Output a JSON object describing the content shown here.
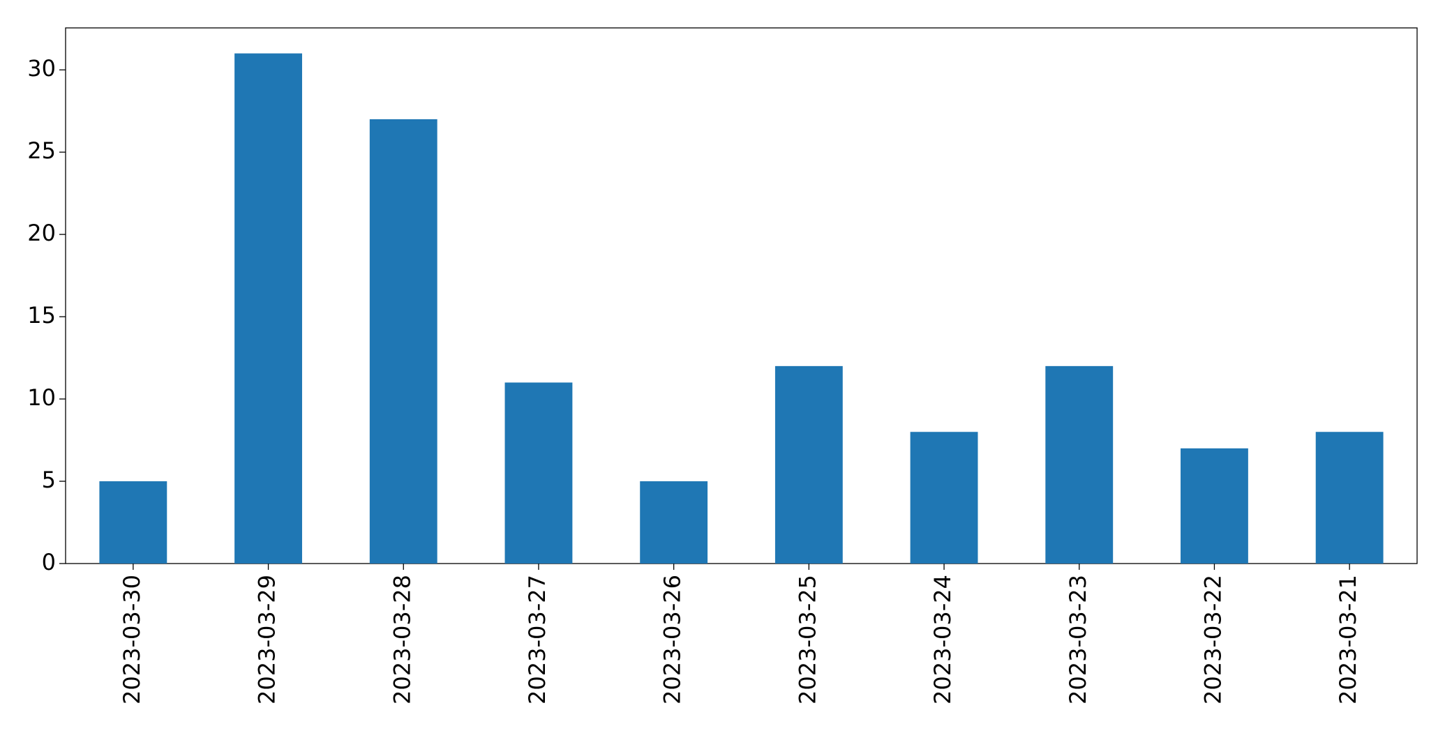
{
  "chart_data": {
    "type": "bar",
    "categories": [
      "2023-03-30",
      "2023-03-29",
      "2023-03-28",
      "2023-03-27",
      "2023-03-26",
      "2023-03-25",
      "2023-03-24",
      "2023-03-23",
      "2023-03-22",
      "2023-03-21"
    ],
    "values": [
      5,
      31,
      27,
      11,
      5,
      12,
      8,
      12,
      7,
      8
    ],
    "color": "#1f77b4",
    "ylim": [
      0,
      32.55
    ],
    "yticks": [
      0,
      5,
      10,
      15,
      20,
      25,
      30
    ],
    "grid": false
  }
}
